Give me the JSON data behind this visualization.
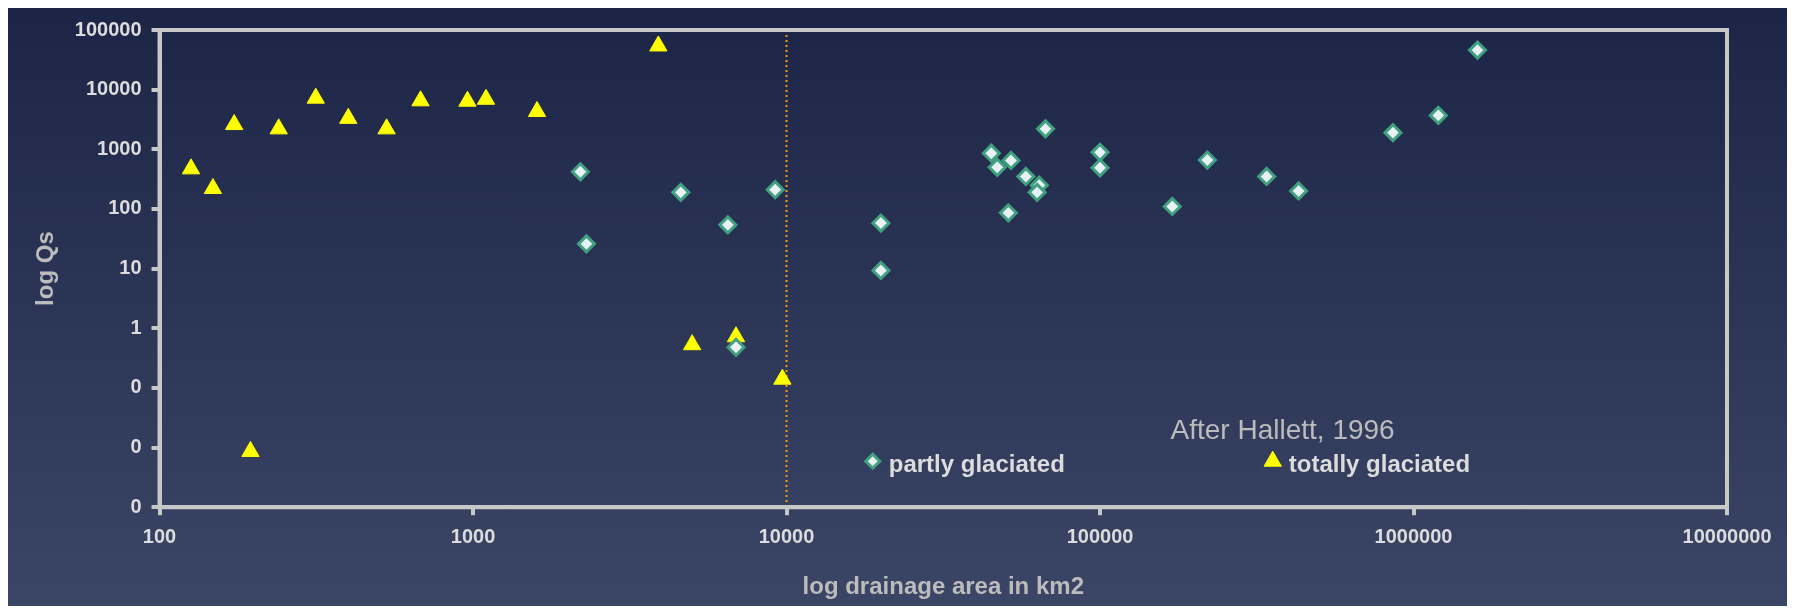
{
  "chart_data": {
    "type": "scatter",
    "xlabel": "log drainage area in km2",
    "ylabel": "log Qs",
    "log": "xy",
    "grid": false,
    "legend": "bottom right",
    "xlim": [
      100,
      10000000
    ],
    "xticks": [
      100,
      1000,
      10000,
      100000,
      1000000,
      10000000
    ],
    "ylim": [
      0.001,
      100000
    ],
    "yticks": [
      {
        "value": 0.001,
        "label": "0"
      },
      {
        "value": 0.01,
        "label": "0"
      },
      {
        "value": 0.1,
        "label": "0"
      },
      1,
      10,
      100,
      1000,
      10000,
      100000
    ],
    "ref_lines": [
      {
        "axis": "x",
        "value": 10000,
        "color": "#ff9900",
        "line_style": "dotted"
      }
    ],
    "annotations": [
      "After Hallett, 1996"
    ],
    "series": [
      {
        "name": "partly glaciated",
        "color": "#40a080",
        "marker": "diamond",
        "x": [
          2200,
          2300,
          4600,
          6500,
          6900,
          9200,
          20000,
          20000,
          45000,
          52000,
          47000,
          67000,
          58000,
          64000,
          63000,
          51000,
          100000,
          100000,
          170000,
          220000,
          340000,
          430000,
          860000,
          1200000,
          1600000
        ],
        "values": [
          420,
          26,
          190,
          54,
          0.48,
          210,
          58,
          9.3,
          860,
          650,
          500,
          2200,
          350,
          250,
          190,
          86,
          890,
          490,
          110,
          660,
          350,
          200,
          1900,
          3700,
          46000
        ]
      },
      {
        "name": "totally glaciated",
        "color": "#ffff00",
        "marker": "triangle",
        "x": [
          126,
          148,
          173,
          195,
          240,
          315,
          400,
          530,
          680,
          960,
          1100,
          1600,
          3900,
          5000,
          6900,
          9700
        ],
        "values": [
          470,
          220,
          2600,
          0.0086,
          2200,
          7200,
          3300,
          2200,
          6500,
          6400,
          6900,
          4300,
          54000,
          0.53,
          0.72,
          0.14
        ]
      }
    ]
  }
}
